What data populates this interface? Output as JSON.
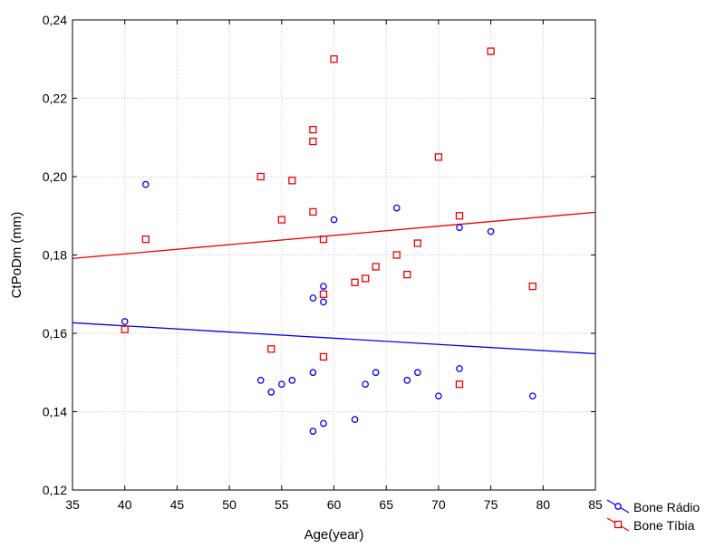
{
  "chart_data": {
    "type": "scatter",
    "xlabel": "Age(year)",
    "ylabel": "CtPoDm (mm)",
    "xlim": [
      35,
      85
    ],
    "ylim": [
      0.12,
      0.24
    ],
    "x_ticks": [
      "35",
      "40",
      "45",
      "50",
      "55",
      "60",
      "65",
      "70",
      "75",
      "80",
      "85"
    ],
    "y_ticks": [
      "0,12",
      "0,14",
      "0,16",
      "0,18",
      "0,20",
      "0,22",
      "0,24"
    ],
    "grid": true,
    "legend_position": "bottom-right-outside",
    "series": [
      {
        "name": "Bone Rádio",
        "marker": "circle",
        "color": "#0000ee",
        "points": [
          [
            40,
            0.163
          ],
          [
            42,
            0.198
          ],
          [
            53,
            0.148
          ],
          [
            54,
            0.145
          ],
          [
            55,
            0.147
          ],
          [
            56,
            0.148
          ],
          [
            58,
            0.15
          ],
          [
            58,
            0.169
          ],
          [
            58,
            0.135
          ],
          [
            59,
            0.172
          ],
          [
            59,
            0.168
          ],
          [
            59,
            0.137
          ],
          [
            60,
            0.189
          ],
          [
            62,
            0.138
          ],
          [
            63,
            0.147
          ],
          [
            64,
            0.15
          ],
          [
            66,
            0.192
          ],
          [
            67,
            0.148
          ],
          [
            68,
            0.15
          ],
          [
            70,
            0.144
          ],
          [
            72,
            0.187
          ],
          [
            72,
            0.151
          ],
          [
            75,
            0.186
          ],
          [
            79,
            0.144
          ]
        ],
        "trend": {
          "x": [
            35,
            85
          ],
          "y": [
            0.1627,
            0.1548
          ]
        }
      },
      {
        "name": "Bone Tíbia",
        "marker": "square",
        "color": "#ee0000",
        "points": [
          [
            40,
            0.161
          ],
          [
            42,
            0.184
          ],
          [
            53,
            0.2
          ],
          [
            54,
            0.156
          ],
          [
            55,
            0.189
          ],
          [
            56,
            0.199
          ],
          [
            58,
            0.212
          ],
          [
            58,
            0.209
          ],
          [
            58,
            0.191
          ],
          [
            59,
            0.184
          ],
          [
            59,
            0.17
          ],
          [
            59,
            0.154
          ],
          [
            60,
            0.23
          ],
          [
            62,
            0.173
          ],
          [
            63,
            0.174
          ],
          [
            64,
            0.177
          ],
          [
            66,
            0.18
          ],
          [
            67,
            0.175
          ],
          [
            68,
            0.183
          ],
          [
            70,
            0.205
          ],
          [
            72,
            0.19
          ],
          [
            72,
            0.147
          ],
          [
            75,
            0.232
          ],
          [
            79,
            0.172
          ]
        ],
        "trend": {
          "x": [
            35,
            85
          ],
          "y": [
            0.1791,
            0.1909
          ]
        }
      }
    ]
  }
}
